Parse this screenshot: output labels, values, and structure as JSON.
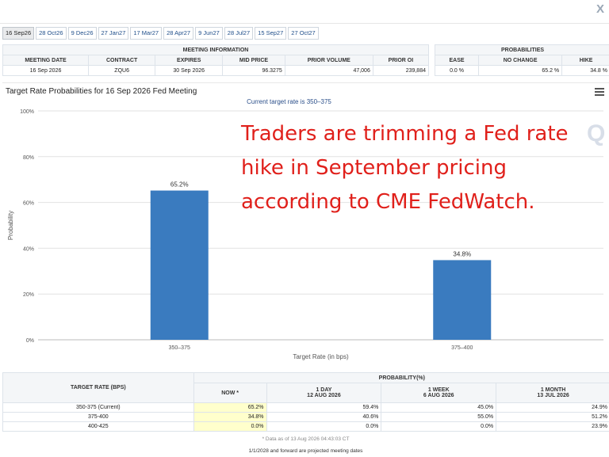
{
  "window": {
    "close_glyph": "X"
  },
  "tabs": [
    "16 Sep26",
    "28 Oct26",
    "9 Dec26",
    "27 Jan27",
    "17 Mar27",
    "28 Apr27",
    "9 Jun27",
    "28 Jul27",
    "15 Sep27",
    "27 Oct27"
  ],
  "meeting_info": {
    "title": "MEETING INFORMATION",
    "headers": [
      "MEETING DATE",
      "CONTRACT",
      "EXPIRES",
      "MID PRICE",
      "PRIOR VOLUME",
      "PRIOR OI"
    ],
    "row": [
      "16 Sep 2026",
      "ZQU6",
      "30 Sep 2026",
      "96.3275",
      "47,006",
      "239,884"
    ]
  },
  "probabilities": {
    "title": "PROBABILITIES",
    "headers": [
      "EASE",
      "NO CHANGE",
      "HIKE"
    ],
    "row": [
      "0.0 %",
      "65.2 %",
      "34.8 %"
    ]
  },
  "chart": {
    "title": "Target Rate Probabilities for 16 Sep 2026 Fed Meeting",
    "subtitle": "Current target rate is 350–375",
    "overlay_text": [
      "Traders are trimming a Fed rate",
      "hike in September pricing",
      "according to CME FedWatch."
    ],
    "overlay_color": "#e0201b",
    "watermark": "Q",
    "bar_color": "#3a7bbf"
  },
  "chart_data": {
    "type": "bar",
    "categories": [
      "350–375",
      "375–400"
    ],
    "values": [
      65.2,
      34.8
    ],
    "value_labels": [
      "65.2%",
      "34.8%"
    ],
    "title": "Target Rate Probabilities for 16 Sep 2026 Fed Meeting",
    "xlabel": "Target Rate (in bps)",
    "ylabel": "Probability",
    "ylim": [
      0,
      100
    ],
    "yticks": [
      "0%",
      "20%",
      "40%",
      "60%",
      "80%",
      "100%"
    ],
    "grid": true
  },
  "target_table": {
    "rate_header": "TARGET RATE (BPS)",
    "prob_header": "PROBABILITY(%)",
    "col_heads": [
      {
        "line1": "NOW *",
        "line2": ""
      },
      {
        "line1": "1 DAY",
        "line2": "12 AUG 2026"
      },
      {
        "line1": "1 WEEK",
        "line2": "6 AUG 2026"
      },
      {
        "line1": "1 MONTH",
        "line2": "13 JUL 2026"
      }
    ],
    "rows": [
      {
        "rate": "350-375 (Current)",
        "vals": [
          "65.2%",
          "59.4%",
          "45.0%",
          "24.9%"
        ]
      },
      {
        "rate": "375-400",
        "vals": [
          "34.8%",
          "40.6%",
          "55.0%",
          "51.2%"
        ]
      },
      {
        "rate": "400-425",
        "vals": [
          "0.0%",
          "0.0%",
          "0.0%",
          "23.9%"
        ]
      }
    ],
    "footnote": "* Data as of 13 Aug 2026 04:43:03 CT",
    "footnote2": "1/1/2028 and forward are projected meeting dates"
  }
}
